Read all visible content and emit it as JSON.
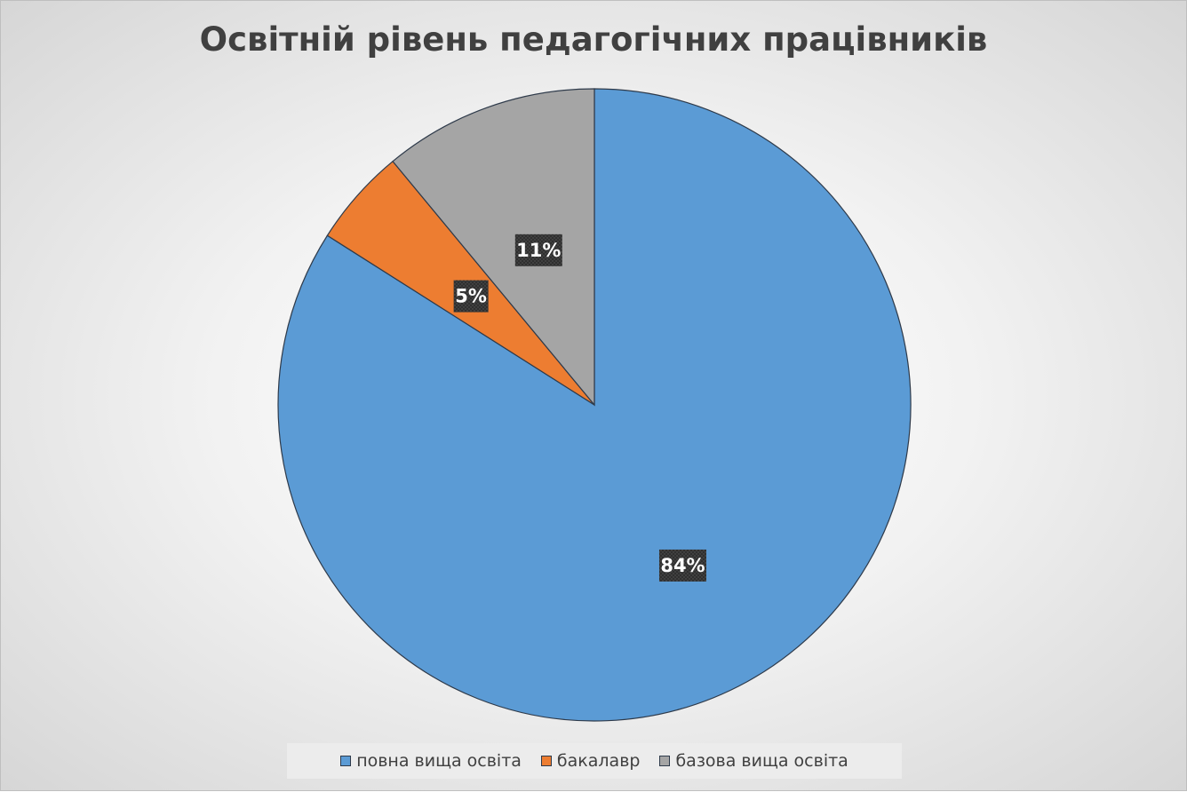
{
  "chart_data": {
    "type": "pie",
    "title": "Освітній рівень педагогічних працівників",
    "categories": [
      "повна вища освіта",
      "бакалавр",
      "базова вища освіта"
    ],
    "values": [
      84,
      5,
      11
    ],
    "data_labels": [
      "84%",
      "5%",
      "11%"
    ],
    "colors": [
      "#5b9bd5",
      "#ed7d31",
      "#a5a5a5"
    ],
    "start_angle": "12 o'clock",
    "direction": "clockwise",
    "legend_position": "bottom"
  }
}
